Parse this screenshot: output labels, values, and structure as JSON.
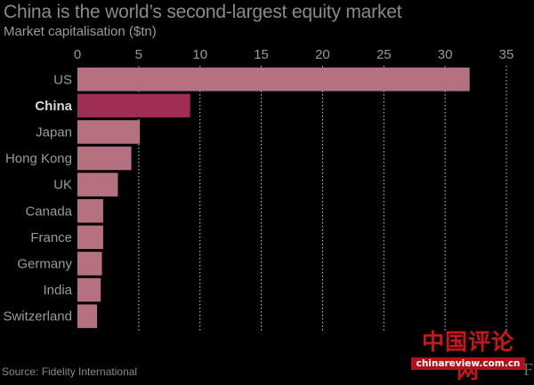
{
  "title": "China is the world’s second-largest equity market",
  "subtitle": "Market capitalisation ($tn)",
  "source": "Source: Fidelity International",
  "watermark": {
    "title": "中国评论网",
    "url": "chinareview.com.cn"
  },
  "brand_mark": "F",
  "colors": {
    "bar": "#b5717f",
    "highlight": "#a02d54",
    "text": "#9a9a9a",
    "grid": "#d0d0d0",
    "background": "#000000"
  },
  "chart_data": {
    "type": "bar",
    "orientation": "horizontal",
    "title": "China is the world’s second-largest equity market",
    "subtitle": "Market capitalisation ($tn)",
    "xlim": [
      0,
      35
    ],
    "xticks": [
      0,
      5,
      10,
      15,
      20,
      25,
      30,
      35
    ],
    "grid": true,
    "categories": [
      "US",
      "China",
      "Japan",
      "Hong Kong",
      "UK",
      "Canada",
      "France",
      "Germany",
      "India",
      "Switzerland"
    ],
    "values": [
      32,
      9.2,
      5.1,
      4.4,
      3.3,
      2.1,
      2.1,
      2.0,
      1.9,
      1.6
    ],
    "highlight": "China"
  }
}
